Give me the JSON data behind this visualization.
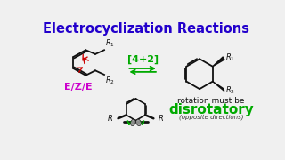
{
  "title": "Electrocyclization Reactions",
  "title_color": "#2200cc",
  "title_fontsize": 10.5,
  "bg_color": "#f0f0f0",
  "ezc_label": "E/Z/E",
  "ezc_color": "#cc00cc",
  "arrow_label": "[4+2]",
  "arrow_color": "#00aa00",
  "disrotatory_label": "disrotatory",
  "disrotatory_color": "#00aa00",
  "rotation_text": "rotation must be",
  "rotation_color": "#111111",
  "opposite_text": "(opposite directions)",
  "opposite_color": "#333333",
  "line_color": "#111111",
  "red_color": "#cc0000",
  "gray_color": "#999999"
}
